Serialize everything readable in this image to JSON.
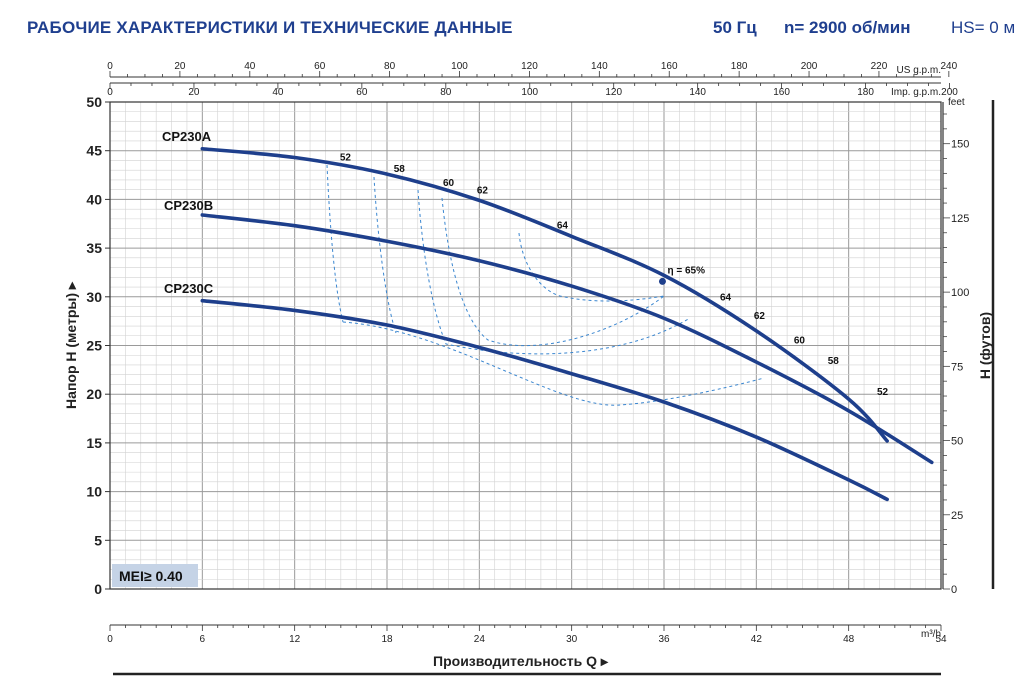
{
  "header": {
    "title": "РАБОЧИЕ ХАРАКТЕРИСТИКИ И ТЕХНИЧЕСКИЕ ДАННЫЕ",
    "frequency": "50 Гц",
    "speed": "n= 2900 об/мин",
    "hs": "HS= 0 м"
  },
  "chart_data": {
    "type": "line",
    "xlabel": "Производительность Q",
    "x_unit": "m3/h",
    "ylabel_left": "Напор H (метры)",
    "ylabel_right": "H (футов)",
    "xlim": [
      0,
      54
    ],
    "ylim": [
      0,
      50
    ],
    "x_ticks": [
      0,
      6,
      12,
      18,
      24,
      30,
      36,
      42,
      48,
      54
    ],
    "y_ticks": [
      0,
      5,
      10,
      15,
      20,
      25,
      30,
      35,
      40,
      45,
      50
    ],
    "top_axis_us": {
      "label": "US g.p.m.",
      "ticks": [
        0,
        20,
        40,
        60,
        80,
        100,
        120,
        140,
        160,
        180,
        200,
        220,
        240
      ]
    },
    "top_axis_imp": {
      "label": "Imp. g.p.m.",
      "ticks": [
        0,
        20,
        40,
        60,
        80,
        100,
        120,
        140,
        160,
        180,
        200
      ]
    },
    "right_axis_feet": {
      "label": "feet",
      "ticks": [
        0,
        25,
        50,
        75,
        100,
        125,
        150
      ]
    },
    "grid": true,
    "series": [
      {
        "name": "CP230A",
        "x": [
          6,
          12,
          18,
          24,
          30,
          36,
          42,
          48,
          50.5
        ],
        "y": [
          45.2,
          44.3,
          42.6,
          39.9,
          36.2,
          32.2,
          26.5,
          19.5,
          15.2
        ]
      },
      {
        "name": "CP230B",
        "x": [
          6,
          12,
          18,
          24,
          30,
          36,
          42,
          48,
          53.4
        ],
        "y": [
          38.4,
          37.3,
          35.7,
          33.7,
          31.1,
          27.8,
          23.3,
          18.3,
          13.0
        ]
      },
      {
        "name": "CP230C",
        "x": [
          6,
          12,
          18,
          24,
          30,
          36,
          42,
          48,
          50.5
        ],
        "y": [
          29.6,
          28.6,
          27.1,
          24.8,
          22.1,
          19.2,
          15.6,
          11.2,
          9.2
        ]
      }
    ],
    "efficiency_labels": [
      {
        "text": "52",
        "x": 15.3,
        "y": 44.0
      },
      {
        "text": "58",
        "x": 18.8,
        "y": 42.8
      },
      {
        "text": "60",
        "x": 22.0,
        "y": 41.4
      },
      {
        "text": "62",
        "x": 24.2,
        "y": 40.6
      },
      {
        "text": "64",
        "x": 29.4,
        "y": 37.0
      },
      {
        "text": "64",
        "x": 40.0,
        "y": 29.6
      },
      {
        "text": "62",
        "x": 42.2,
        "y": 27.7
      },
      {
        "text": "60",
        "x": 44.8,
        "y": 25.2
      },
      {
        "text": "58",
        "x": 47.0,
        "y": 23.1
      },
      {
        "text": "52",
        "x": 50.2,
        "y": 19.9
      }
    ],
    "efficiency_point": {
      "text": "η = 65%",
      "x": 35.9,
      "y": 32.4
    },
    "mei_label": "MEI≥ 0.40"
  }
}
